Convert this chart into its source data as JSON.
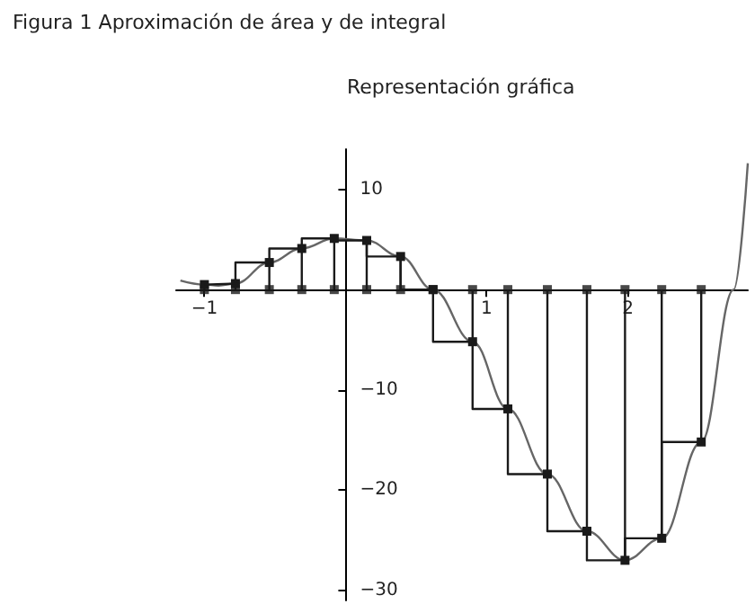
{
  "chart_data": {
    "type": "line",
    "title": "Figura 1 Aproximación de área y de integral",
    "subtitle": "Representación gráfica",
    "xlim": [
      -1.2,
      2.85
    ],
    "ylim": [
      -31,
      14
    ],
    "xticks": [
      {
        "value": -1,
        "label": "−1"
      },
      1,
      2
    ],
    "yticks": [
      10,
      {
        "value": -10,
        "label": "−10"
      },
      {
        "value": -20,
        "label": "−20"
      },
      {
        "value": -30,
        "label": "−30"
      }
    ],
    "grid": false,
    "series": [
      {
        "color": "#666666",
        "marker": "none",
        "x": [
          -1.17,
          -1,
          -0.9,
          -0.78,
          -0.54,
          -0.31,
          -0.08,
          0.15,
          0.39,
          0.62,
          0.9,
          1.15,
          1.43,
          1.71,
          1.98,
          2.24,
          2.52,
          2.75,
          2.85
        ],
        "values": [
          0.9,
          0.5,
          0.4,
          0.6,
          2.7,
          4.1,
          5.1,
          4.9,
          3.3,
          0,
          -5.2,
          -11.9,
          -18.4,
          -24.1,
          -27,
          -24.8,
          -15.2,
          0,
          12.6
        ]
      },
      {
        "type": "step",
        "color": "#1a1a1a",
        "marker": "none",
        "x": [
          -1,
          -0.78,
          -0.54,
          -0.31,
          -0.08,
          0.15,
          0.39,
          0.62,
          0.9,
          1.15,
          1.43,
          1.71,
          1.98,
          2.24,
          2.52
        ],
        "values": [
          0.5,
          0.6,
          2.7,
          4.1,
          5.1,
          4.9,
          3.3,
          0,
          -5.2,
          -11.9,
          -18.4,
          -24.1,
          -27,
          -24.8,
          -15.2
        ]
      },
      {
        "type": "lollipop",
        "color": "#1a1a1a",
        "marker": "square",
        "x": [
          -1,
          -0.78,
          -0.54,
          -0.31,
          -0.08,
          0.15,
          0.39,
          0.62,
          0.9,
          1.15,
          1.43,
          1.71,
          1.98,
          2.24,
          2.52
        ],
        "values": [
          0.5,
          0.6,
          2.7,
          4.1,
          5.1,
          4.9,
          3.3,
          0,
          -5.2,
          -11.9,
          -18.4,
          -24.1,
          -27,
          -24.8,
          -15.2
        ]
      },
      {
        "type": "scatter",
        "color": "#1a1a1a",
        "marker": "square",
        "x": [
          -1,
          -0.78,
          -0.54,
          -0.31,
          -0.08,
          0.15,
          0.39,
          0.62,
          0.9,
          1.15,
          1.43,
          1.71,
          1.98,
          2.24,
          2.52
        ],
        "values": [
          0,
          0,
          0,
          0,
          0,
          0,
          0,
          0,
          0,
          0,
          0,
          0,
          0,
          0,
          0
        ]
      }
    ]
  }
}
